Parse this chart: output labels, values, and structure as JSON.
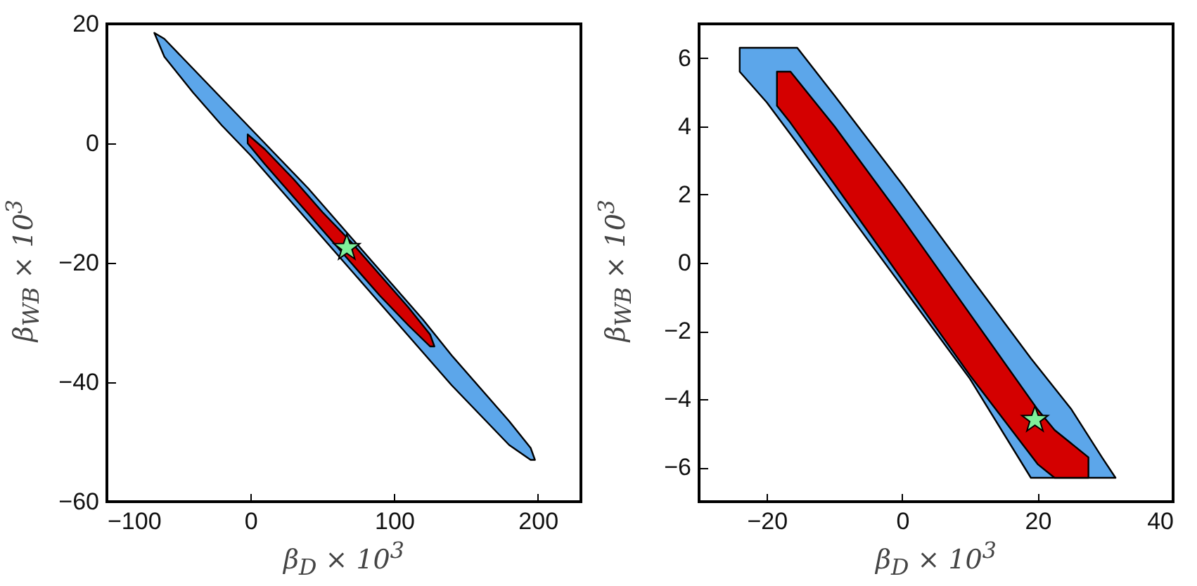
{
  "chart_data": [
    {
      "type": "area",
      "xlabel": "β$_{D}$ × 10$^{3}$",
      "ylabel": "β$_{WB}$ × 10$^{3}$",
      "xlim": [
        -100,
        230
      ],
      "xticks": [
        -100,
        0,
        100,
        200
      ],
      "ylim": [
        -60,
        20
      ],
      "yticks": [
        -60,
        -40,
        -20,
        0,
        20
      ],
      "grid": false,
      "series": [
        {
          "type": "area",
          "color": "#5ca6ea",
          "x": [
            -67,
            -60,
            -40,
            -20,
            0,
            20,
            40,
            60,
            80,
            100,
            120,
            140,
            160,
            180,
            195,
            198
          ],
          "values": [
            null,
            null,
            null,
            null,
            null,
            null,
            null,
            null,
            null,
            null,
            null,
            null,
            null,
            null,
            null,
            null
          ],
          "lower": [
            18.5,
            14.5,
            8.5,
            3,
            -2,
            -7.5,
            -13,
            -18.5,
            -24,
            -29.5,
            -35,
            -40.5,
            -45.5,
            -50.5,
            -53,
            -53
          ],
          "upper": [
            18.5,
            17.5,
            12.5,
            7.5,
            2.5,
            -2.5,
            -7.5,
            -13,
            -18.5,
            -24,
            -29.5,
            -35.5,
            -41,
            -46.5,
            -51,
            -53
          ]
        },
        {
          "type": "area",
          "color": "#d40000",
          "x": [
            -2,
            10,
            30,
            50,
            70,
            90,
            110,
            125,
            128
          ],
          "values": [
            null,
            null,
            null,
            null,
            null,
            null,
            null,
            null,
            null
          ],
          "lower": [
            0,
            -3.5,
            -9,
            -14.5,
            -20,
            -25.5,
            -30.5,
            -34,
            -34
          ],
          "upper": [
            1.5,
            -1,
            -6,
            -11.5,
            -16.5,
            -22,
            -27.5,
            -32,
            -34
          ]
        },
        {
          "type": "scatter",
          "color": "#7ff09a",
          "marker": "star",
          "x": [
            67
          ],
          "values": [
            -17.5
          ]
        }
      ]
    },
    {
      "type": "area",
      "xlabel": "β$_{D}$ × 10$^{3}$",
      "ylabel": "β$_{WB}$ × 10$^{3}$",
      "xlim": [
        -30,
        40
      ],
      "xticks": [
        -20,
        0,
        20,
        40
      ],
      "ylim": [
        -7,
        7
      ],
      "yticks": [
        -6,
        -4,
        -2,
        0,
        2,
        4,
        6
      ],
      "grid": false,
      "series": [
        {
          "type": "area",
          "color": "#5ca6ea",
          "x": [
            -24,
            -20,
            -15.5,
            -10,
            0,
            10,
            19,
            25,
            29.5,
            31.5
          ],
          "values": [
            null,
            null,
            null,
            null,
            null,
            null,
            null,
            null,
            null,
            null
          ],
          "lower": [
            5.6,
            4.7,
            3.5,
            2.0,
            -0.7,
            -3.4,
            -6.3,
            -6.3,
            -6.3,
            -6.3
          ],
          "upper": [
            6.3,
            6.3,
            6.3,
            4.9,
            2.3,
            -0.4,
            -2.8,
            -4.3,
            -5.7,
            -6.3
          ]
        },
        {
          "type": "area",
          "color": "#d40000",
          "x": [
            -18.5,
            -16.5,
            -10,
            0,
            10,
            20,
            22.5,
            27.5
          ],
          "values": [
            null,
            null,
            null,
            null,
            null,
            null,
            null,
            null
          ],
          "lower": [
            4.6,
            4.1,
            2.3,
            -0.5,
            -3.3,
            -5.9,
            -6.3,
            -6.3
          ],
          "upper": [
            5.6,
            5.6,
            4.0,
            1.3,
            -1.5,
            -4.3,
            -4.9,
            -5.7
          ]
        },
        {
          "type": "scatter",
          "color": "#7ff09a",
          "marker": "star",
          "x": [
            19.6
          ],
          "values": [
            -4.6
          ]
        }
      ]
    }
  ]
}
